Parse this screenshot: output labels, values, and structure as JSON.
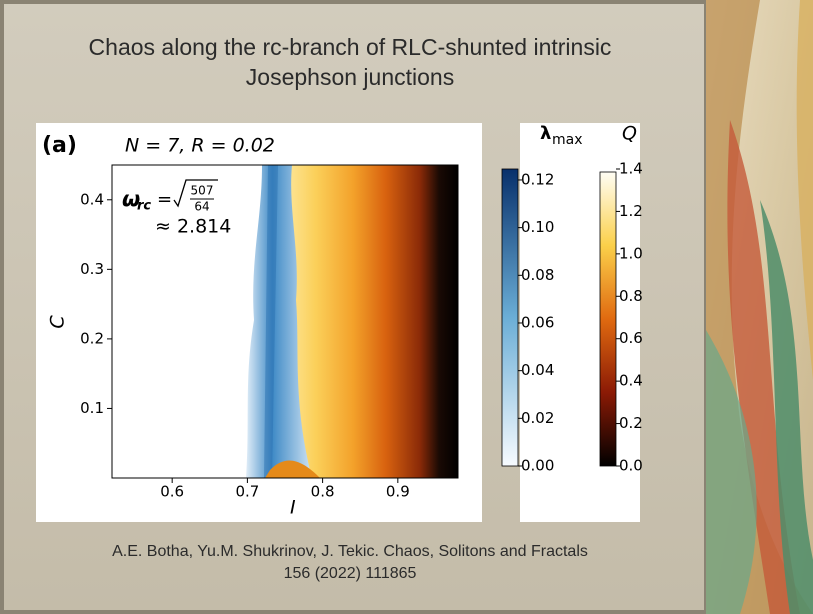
{
  "slide": {
    "title": [
      "Chaos along the rc-branch of RLC-shunted intrinsic",
      "Josephson junctions"
    ],
    "figure": {
      "panel": "(a)",
      "params": "N = 7,  R = 0.02",
      "omega": {
        "symbol": "ω",
        "subscript": "rc",
        "eq": "=",
        "numerator": "507",
        "denominator": "64",
        "approx": "≈ 2.814"
      },
      "x_label": "I",
      "y_label": "C",
      "xlim": [
        0.52,
        0.98
      ],
      "xticks": [
        0.6,
        0.7,
        0.8,
        0.9
      ],
      "ylim": [
        0,
        0.45
      ],
      "yticks": [
        0.1,
        0.2,
        0.3,
        0.4
      ],
      "lambda_bar": {
        "label": "λ",
        "label_sub": "max",
        "lim": [
          0,
          0.1246
        ],
        "ticks": [
          {
            "value": 0,
            "label": "0.00"
          },
          {
            "value": 0.02,
            "label": "0.02"
          },
          {
            "value": 0.04,
            "label": "0.04"
          },
          {
            "value": 0.06,
            "label": "0.06"
          },
          {
            "value": 0.08,
            "label": "0.08"
          },
          {
            "value": 0.1,
            "label": "0.10"
          },
          {
            "value": 0.12,
            "label": "0.12"
          }
        ]
      },
      "q_bar": {
        "label": "Q",
        "lim": [
          0,
          1.4
        ],
        "ticks": [
          {
            "value": 0,
            "label": "0.0"
          },
          0.2,
          0.4,
          0.6,
          0.8,
          {
            "value": 1,
            "label": "1.0"
          },
          1.2,
          1.4
        ]
      }
    },
    "citation": [
      "A.E. Botha, Yu.M. Shukrinov, J. Tekic. Chaos,  Solitons and Fractals",
      "156 (2022) 111865"
    ]
  }
}
